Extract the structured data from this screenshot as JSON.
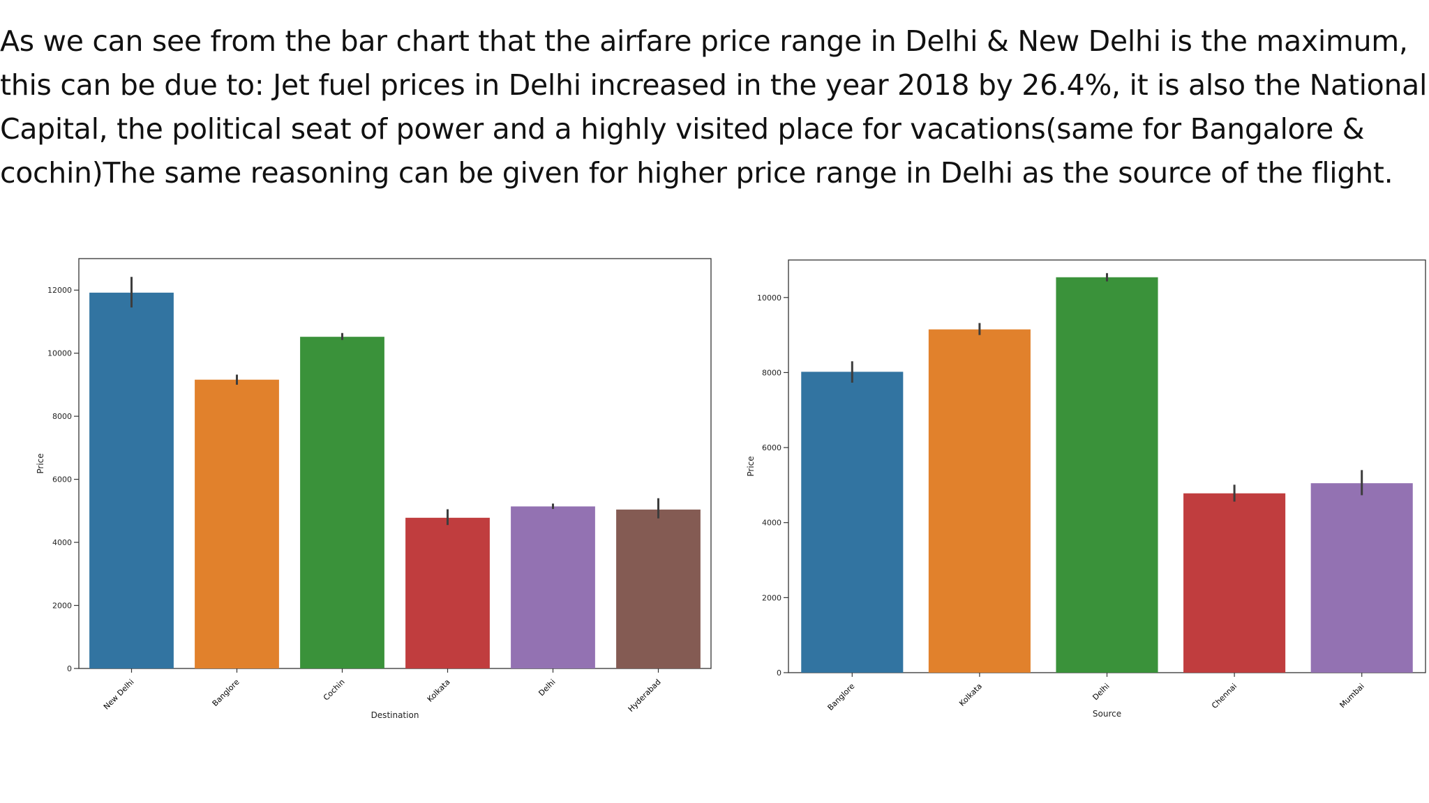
{
  "paragraph": "As we can see from the bar chart that the airfare price range in Delhi & New Delhi is the maximum, this can be due to: Jet fuel prices in Delhi increased in the year 2018 by 26.4%, it is also the National Capital, the political seat of power and a highly visited place for vacations(same for Bangalore & cochin)The same reasoning can be given for higher price range in Delhi as the source of the flight.",
  "chart_data": [
    {
      "type": "bar",
      "xlabel": "Destination",
      "ylabel": "Price",
      "ylim": [
        0,
        13000
      ],
      "yticks": [
        0,
        2000,
        4000,
        6000,
        8000,
        10000,
        12000
      ],
      "categories": [
        "New Delhi",
        "Banglore",
        "Cochin",
        "Kolkata",
        "Delhi",
        "Hyderabad"
      ],
      "values": [
        11920,
        9160,
        10520,
        4780,
        5140,
        5040
      ],
      "error_low": [
        11450,
        9000,
        10420,
        4550,
        5060,
        4760
      ],
      "error_high": [
        12420,
        9320,
        10640,
        5050,
        5230,
        5400
      ],
      "colors": [
        "#3274a1",
        "#e1812c",
        "#3a923a",
        "#c03d3e",
        "#9372b2",
        "#845b53"
      ],
      "grid": false
    },
    {
      "type": "bar",
      "xlabel": "Source",
      "ylabel": "Price",
      "ylim": [
        0,
        11000
      ],
      "yticks": [
        0,
        2000,
        4000,
        6000,
        8000,
        10000
      ],
      "categories": [
        "Banglore",
        "Kolkata",
        "Delhi",
        "Chennai",
        "Mumbai"
      ],
      "values": [
        8020,
        9150,
        10540,
        4780,
        5050
      ],
      "error_low": [
        7730,
        9000,
        10430,
        4560,
        4730
      ],
      "error_high": [
        8300,
        9320,
        10650,
        5010,
        5400
      ],
      "colors": [
        "#3274a1",
        "#e1812c",
        "#3a923a",
        "#c03d3e",
        "#9372b2"
      ],
      "grid": false
    }
  ]
}
